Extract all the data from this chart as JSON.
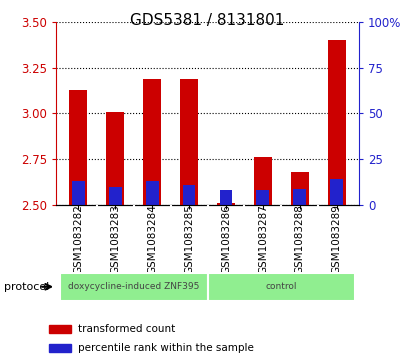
{
  "title": "GDS5381 / 8131801",
  "samples": [
    "GSM1083282",
    "GSM1083283",
    "GSM1083284",
    "GSM1083285",
    "GSM1083286",
    "GSM1083287",
    "GSM1083288",
    "GSM1083289"
  ],
  "transformed_counts": [
    3.13,
    3.01,
    3.19,
    3.19,
    2.51,
    2.76,
    2.68,
    3.4
  ],
  "percentile_ranks": [
    13,
    10,
    13,
    11,
    8,
    8,
    9,
    14
  ],
  "ylim_left": [
    2.5,
    3.5
  ],
  "yticks_left": [
    2.5,
    2.75,
    3.0,
    3.25,
    3.5
  ],
  "ylim_right": [
    0,
    100
  ],
  "yticks_right": [
    0,
    25,
    50,
    75,
    100
  ],
  "yticklabels_right": [
    "0",
    "25",
    "50",
    "75",
    "100%"
  ],
  "bar_bottom": 2.5,
  "bar_color_red": "#cc0000",
  "bar_color_blue": "#2222cc",
  "blue_bar_width": 0.35,
  "red_bar_width": 0.5,
  "group1_label": "doxycycline-induced ZNF395",
  "group2_label": "control",
  "group_color": "#90ee90",
  "protocol_label": "protocol",
  "legend_red": "transformed count",
  "legend_blue": "percentile rank within the sample",
  "bg_color": "#d3d3d3",
  "plot_bg": "#ffffff",
  "title_fontsize": 11,
  "tick_fontsize": 8.5
}
